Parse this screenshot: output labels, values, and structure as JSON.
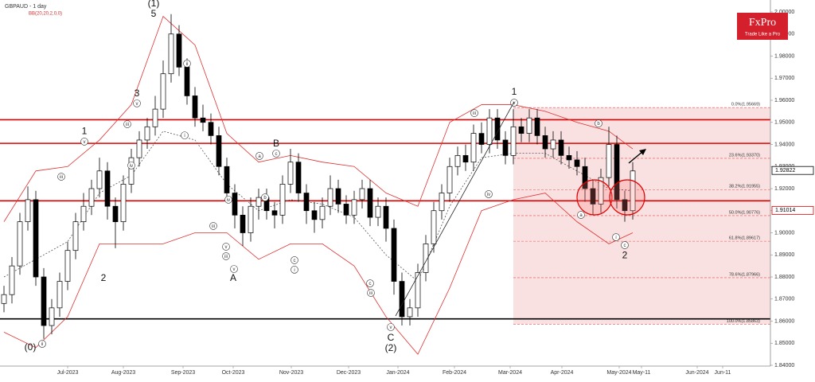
{
  "chart_data": {
    "type": "candlestick",
    "title": "GBPAUD - 1 day",
    "subtitle": "BB(20,20,2,0,0)",
    "brand": "FxPro",
    "brand_tagline": "Trade Like a Pro",
    "x": [
      0,
      1,
      2,
      3,
      4,
      5,
      6,
      7,
      8,
      9,
      10,
      11,
      12,
      13,
      14,
      15,
      16,
      17,
      18,
      19,
      20,
      21,
      22,
      23,
      24,
      25,
      26,
      27,
      28,
      29,
      30,
      31,
      32,
      33,
      34,
      35,
      36,
      37,
      38,
      39,
      40,
      41,
      42,
      43,
      44,
      45,
      46,
      47,
      48,
      49,
      50,
      51,
      52,
      53,
      54,
      55,
      56,
      57,
      58,
      59,
      60,
      61,
      62,
      63,
      64,
      65,
      66,
      67,
      68,
      69,
      70,
      71,
      72,
      73,
      74,
      75,
      76,
      77,
      78,
      79
    ],
    "open": [
      1.868,
      1.872,
      1.885,
      1.905,
      1.915,
      1.88,
      1.858,
      1.866,
      1.878,
      1.892,
      1.905,
      1.912,
      1.92,
      1.928,
      1.912,
      1.905,
      1.922,
      1.934,
      1.942,
      1.948,
      1.956,
      1.972,
      1.99,
      1.975,
      1.962,
      1.952,
      1.95,
      1.944,
      1.93,
      1.918,
      1.908,
      1.9,
      1.912,
      1.916,
      1.91,
      1.908,
      1.922,
      1.932,
      1.918,
      1.91,
      1.906,
      1.912,
      1.92,
      1.913,
      1.908,
      1.915,
      1.92,
      1.907,
      1.912,
      1.902,
      1.878,
      1.862,
      1.866,
      1.882,
      1.895,
      1.91,
      1.918,
      1.93,
      1.935,
      1.932,
      1.945,
      1.94,
      1.952,
      1.942,
      1.935,
      1.948,
      1.945,
      1.952,
      1.944,
      1.938,
      1.942,
      1.935,
      1.933,
      1.93,
      1.92,
      1.913,
      1.925,
      1.94,
      1.915,
      1.91
    ],
    "high": [
      1.876,
      1.889,
      1.909,
      1.921,
      1.919,
      1.884,
      1.87,
      1.882,
      1.896,
      1.909,
      1.918,
      1.924,
      1.934,
      1.932,
      1.916,
      1.926,
      1.938,
      1.946,
      1.952,
      1.962,
      1.978,
      1.999,
      1.994,
      1.979,
      1.966,
      1.958,
      1.954,
      1.948,
      1.934,
      1.922,
      1.912,
      1.916,
      1.92,
      1.92,
      1.914,
      1.926,
      1.938,
      1.936,
      1.922,
      1.914,
      1.916,
      1.926,
      1.924,
      1.917,
      1.919,
      1.924,
      1.924,
      1.916,
      1.916,
      1.906,
      1.882,
      1.87,
      1.886,
      1.899,
      1.914,
      1.922,
      1.934,
      1.939,
      1.94,
      1.949,
      1.95,
      1.956,
      1.956,
      1.946,
      1.956,
      1.952,
      1.956,
      1.956,
      1.948,
      1.946,
      1.946,
      1.939,
      1.937,
      1.934,
      1.924,
      1.929,
      1.948,
      1.944,
      1.919,
      1.932
    ],
    "low": [
      1.864,
      1.868,
      1.881,
      1.901,
      1.876,
      1.852,
      1.854,
      1.862,
      1.874,
      1.888,
      1.901,
      1.908,
      1.916,
      1.906,
      1.893,
      1.901,
      1.918,
      1.93,
      1.938,
      1.944,
      1.952,
      1.968,
      1.971,
      1.958,
      1.948,
      1.946,
      1.94,
      1.926,
      1.914,
      1.902,
      1.894,
      1.896,
      1.906,
      1.906,
      1.902,
      1.904,
      1.918,
      1.914,
      1.904,
      1.9,
      1.902,
      1.908,
      1.909,
      1.904,
      1.904,
      1.911,
      1.903,
      1.903,
      1.896,
      1.872,
      1.858,
      1.858,
      1.862,
      1.878,
      1.891,
      1.906,
      1.914,
      1.926,
      1.928,
      1.928,
      1.936,
      1.936,
      1.938,
      1.931,
      1.931,
      1.941,
      1.941,
      1.94,
      1.934,
      1.934,
      1.931,
      1.929,
      1.926,
      1.914,
      1.908,
      1.909,
      1.921,
      1.911,
      1.905,
      1.906
    ],
    "close": [
      1.872,
      1.885,
      1.905,
      1.915,
      1.88,
      1.858,
      1.866,
      1.878,
      1.892,
      1.905,
      1.912,
      1.92,
      1.928,
      1.912,
      1.905,
      1.922,
      1.934,
      1.942,
      1.948,
      1.956,
      1.972,
      1.99,
      1.975,
      1.962,
      1.952,
      1.95,
      1.944,
      1.93,
      1.918,
      1.908,
      1.9,
      1.912,
      1.916,
      1.91,
      1.908,
      1.922,
      1.932,
      1.918,
      1.91,
      1.906,
      1.912,
      1.92,
      1.913,
      1.908,
      1.915,
      1.92,
      1.907,
      1.912,
      1.902,
      1.878,
      1.862,
      1.866,
      1.882,
      1.895,
      1.91,
      1.918,
      1.93,
      1.935,
      1.932,
      1.945,
      1.94,
      1.952,
      1.942,
      1.935,
      1.948,
      1.945,
      1.952,
      1.944,
      1.938,
      1.942,
      1.935,
      1.933,
      1.93,
      1.92,
      1.913,
      1.925,
      1.94,
      1.915,
      1.91,
      1.928
    ],
    "up_color": "#ffffff",
    "down_color": "#000000",
    "bands": {
      "color": "#e03030",
      "x": [
        0,
        4,
        8,
        12,
        16,
        20,
        24,
        28,
        32,
        36,
        40,
        44,
        48,
        52,
        56,
        60,
        64,
        68,
        72,
        76,
        79
      ],
      "upper": [
        1.905,
        1.928,
        1.93,
        1.942,
        1.958,
        1.998,
        1.985,
        1.945,
        1.932,
        1.935,
        1.932,
        1.93,
        1.918,
        1.912,
        1.95,
        1.958,
        1.958,
        1.955,
        1.95,
        1.946,
        1.938
      ],
      "middle": [
        1.88,
        1.888,
        1.896,
        1.918,
        1.926,
        1.946,
        1.942,
        1.922,
        1.91,
        1.915,
        1.913,
        1.907,
        1.89,
        1.878,
        1.912,
        1.934,
        1.936,
        1.936,
        1.928,
        1.92,
        1.919
      ],
      "lower": [
        1.855,
        1.848,
        1.862,
        1.895,
        1.895,
        1.895,
        1.9,
        1.9,
        1.888,
        1.895,
        1.895,
        1.885,
        1.862,
        1.845,
        1.875,
        1.91,
        1.915,
        1.918,
        1.905,
        1.895,
        1.9
      ]
    },
    "levels": [
      {
        "value": 1.9512,
        "color": "#e00000"
      },
      {
        "value": 1.9405,
        "color": "#e00000"
      },
      {
        "value": 1.9145,
        "color": "#e00000"
      },
      {
        "value": 1.861,
        "color": "#000000"
      }
    ],
    "zone_start": 64,
    "zone_color": "#f7d4d4",
    "fib_levels": [
      {
        "value": 1.95669,
        "label": "0.0%(1.95669)"
      },
      {
        "value": 1.9337,
        "label": "23.6%(1.93370)"
      },
      {
        "value": 1.91955,
        "label": "38.2%(1.91955)"
      },
      {
        "value": 1.90776,
        "label": "50.0%(1.90776)"
      },
      {
        "value": 1.89617,
        "label": "61.8%(1.89617)"
      },
      {
        "value": 1.87966,
        "label": "78.6%(1.87966)"
      },
      {
        "value": 1.85863,
        "label": "100.0%(1.85863)"
      }
    ],
    "price_tags": [
      {
        "value": 1.92822,
        "label": "1.92822",
        "color": "#000000"
      },
      {
        "value": 1.91014,
        "label": "1.91014",
        "color": "#e00000"
      }
    ],
    "annotations": [
      {
        "text": "(1)",
        "x": 18.8,
        "y": 2.0036
      },
      {
        "text": "5",
        "x": 18.8,
        "y": 1.9989
      },
      {
        "text": "3",
        "x": 16.7,
        "y": 1.9629
      },
      {
        "text": "1",
        "x": 10.1,
        "y": 1.9459
      },
      {
        "text": "B",
        "x": 34.2,
        "y": 1.9402
      },
      {
        "text": "A",
        "x": 28.8,
        "y": 1.8793
      },
      {
        "text": "C",
        "x": 48.6,
        "y": 1.8523
      },
      {
        "text": "(2)",
        "x": 48.6,
        "y": 1.8476
      },
      {
        "text": "(0)",
        "x": 3.3,
        "y": 1.8479
      },
      {
        "text": "2",
        "x": 12.5,
        "y": 1.8793
      },
      {
        "text": "1",
        "x": 64.1,
        "y": 1.9636
      },
      {
        "text": "2",
        "x": 78.0,
        "y": 1.8897
      }
    ],
    "wave_marks": [
      {
        "text": "v",
        "x": 10.1,
        "y": 1.9413
      },
      {
        "text": "v",
        "x": 16.7,
        "y": 1.9586
      },
      {
        "text": "iv",
        "x": 16.0,
        "y": 1.9305
      },
      {
        "text": "iii",
        "x": 15.5,
        "y": 1.9492
      },
      {
        "text": "ii",
        "x": 23.0,
        "y": 1.9766
      },
      {
        "text": "i",
        "x": 22.7,
        "y": 1.9441
      },
      {
        "text": "iii",
        "x": 7.2,
        "y": 1.9254
      },
      {
        "text": "ii",
        "x": 4.8,
        "y": 1.8497
      },
      {
        "text": "a",
        "x": 32.1,
        "y": 1.9348
      },
      {
        "text": "c",
        "x": 34.2,
        "y": 1.9359
      },
      {
        "text": "b",
        "x": 32.8,
        "y": 1.916
      },
      {
        "text": "iv",
        "x": 28.2,
        "y": 1.915
      },
      {
        "text": "iii",
        "x": 26.3,
        "y": 1.9031
      },
      {
        "text": "v",
        "x": 27.9,
        "y": 1.8937
      },
      {
        "text": "iii",
        "x": 27.9,
        "y": 1.8894
      },
      {
        "text": "v",
        "x": 28.9,
        "y": 1.8836
      },
      {
        "text": "c",
        "x": 36.5,
        "y": 1.8876
      },
      {
        "text": "i",
        "x": 36.5,
        "y": 1.8833
      },
      {
        "text": "c",
        "x": 46.0,
        "y": 1.8771
      },
      {
        "text": "iii",
        "x": 46.1,
        "y": 1.8728
      },
      {
        "text": "v",
        "x": 48.6,
        "y": 1.8573
      },
      {
        "text": "iii",
        "x": 59.1,
        "y": 1.9542
      },
      {
        "text": "iv",
        "x": 60.9,
        "y": 1.9175
      },
      {
        "text": "v",
        "x": 64.1,
        "y": 1.9589
      },
      {
        "text": "a",
        "x": 72.5,
        "y": 1.9081
      },
      {
        "text": "b",
        "x": 74.7,
        "y": 1.9495
      },
      {
        "text": "i",
        "x": 76.9,
        "y": 1.898
      },
      {
        "text": "c",
        "x": 78.0,
        "y": 1.8944
      }
    ],
    "xlim": [
      -0.5,
      96.3
    ],
    "xticks": [
      {
        "value": 8.0,
        "label": "Jul-2023"
      },
      {
        "value": 15.0,
        "label": "Aug-2023"
      },
      {
        "value": 22.5,
        "label": "Sep-2023"
      },
      {
        "value": 28.8,
        "label": "Oct-2023"
      },
      {
        "value": 36.1,
        "label": "Nov-2023"
      },
      {
        "value": 43.3,
        "label": "Dec-2023"
      },
      {
        "value": 49.5,
        "label": "Jan-2024"
      },
      {
        "value": 56.6,
        "label": "Feb-2024"
      },
      {
        "value": 63.6,
        "label": "Mar-2024"
      },
      {
        "value": 70.1,
        "label": "Apr-2024"
      },
      {
        "value": 77.3,
        "label": "May-2024"
      },
      {
        "value": 80.1,
        "label": "May-11"
      },
      {
        "value": 87.1,
        "label": "Jun-2024"
      },
      {
        "value": 90.3,
        "label": "Jun-11"
      }
    ],
    "ylim": [
      1.84,
      2.0054
    ],
    "yticks": [
      {
        "value": 1.84,
        "label": "1.84000"
      },
      {
        "value": 1.85,
        "label": "1.85000"
      },
      {
        "value": 1.86,
        "label": "1.86000"
      },
      {
        "value": 1.87,
        "label": "1.87000"
      },
      {
        "value": 1.88,
        "label": "1.88000"
      },
      {
        "value": 1.89,
        "label": "1.89000"
      },
      {
        "value": 1.9,
        "label": "1.90000"
      },
      {
        "value": 1.91,
        "label": "1.91000"
      },
      {
        "value": 1.92,
        "label": "1.92000"
      },
      {
        "value": 1.93,
        "label": "1.93000"
      },
      {
        "value": 1.94,
        "label": "1.94000"
      },
      {
        "value": 1.95,
        "label": "1.95000"
      },
      {
        "value": 1.96,
        "label": "1.96000"
      },
      {
        "value": 1.97,
        "label": "1.97000"
      },
      {
        "value": 1.98,
        "label": "1.98000"
      },
      {
        "value": 1.99,
        "label": "1.99000"
      },
      {
        "value": 2.0,
        "label": "2.00000"
      }
    ]
  }
}
